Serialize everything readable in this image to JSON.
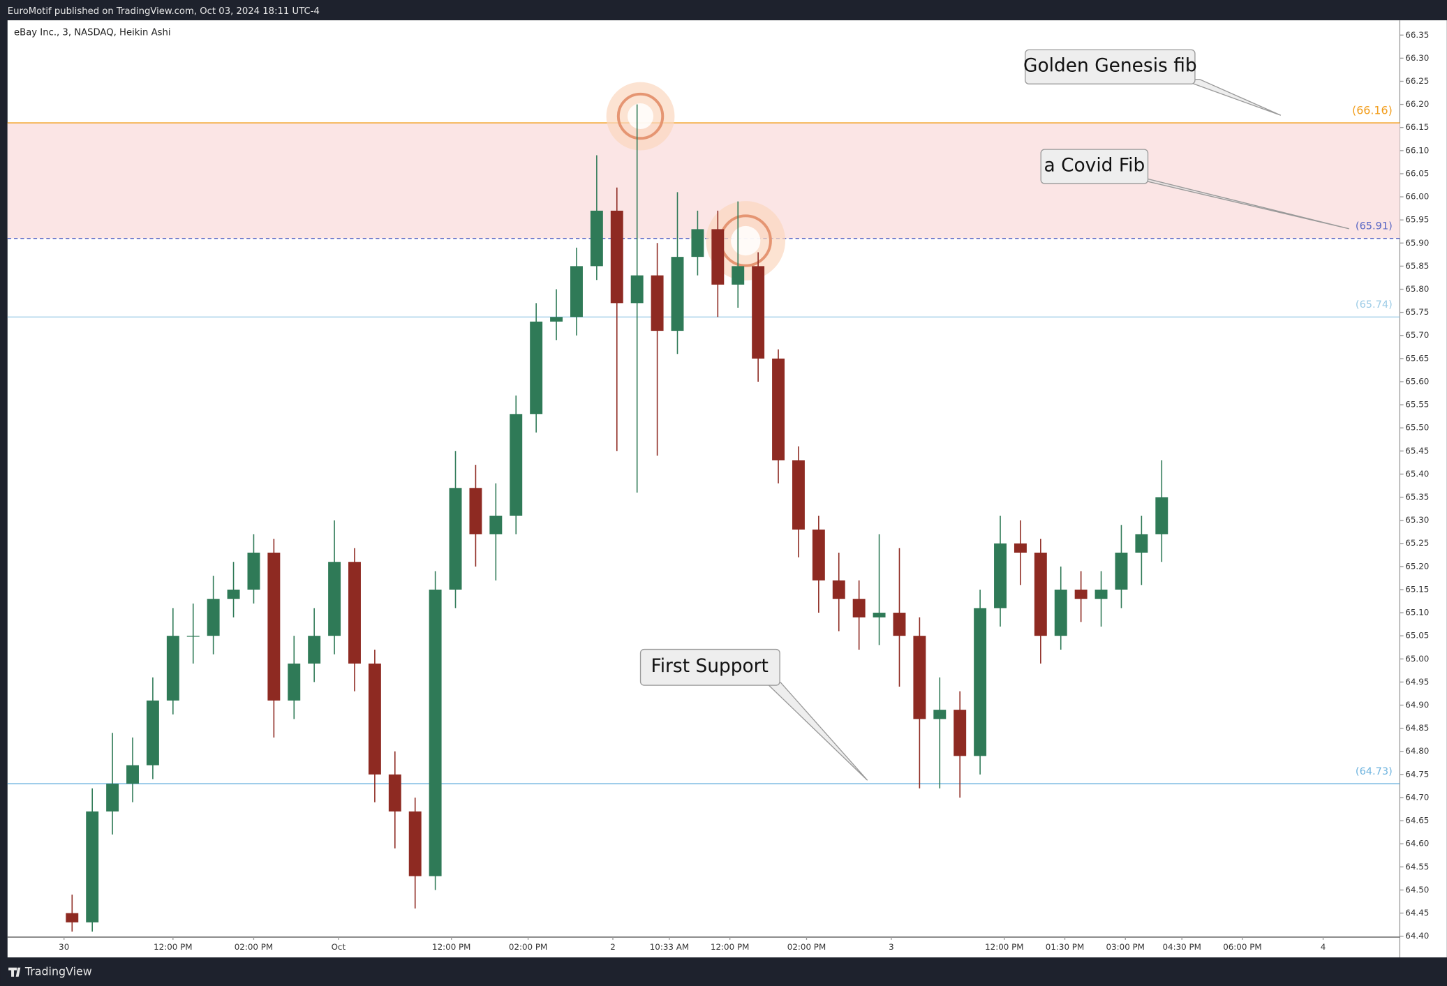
{
  "header": "EuroMotif published on TradingView.com, Oct 03, 2024 18:11 UTC-4",
  "footer": "TradingView",
  "chart_data": {
    "type": "candlestick",
    "title": "eBay Inc., 3, NASDAQ, Heikin Ashi",
    "up_color": "#2f7a57",
    "down_color": "#8e2a22",
    "x": [
      16,
      21,
      26,
      31,
      36,
      41,
      46,
      51,
      56,
      61,
      66,
      71,
      76,
      81,
      86,
      91,
      96,
      101,
      106,
      111,
      116,
      121,
      126,
      131,
      136,
      141,
      146,
      151,
      156,
      161,
      166,
      171,
      176,
      181,
      186,
      191,
      196,
      201,
      206,
      211,
      216,
      221,
      226,
      231,
      236,
      241,
      246,
      251,
      256,
      261,
      266,
      271,
      276,
      281,
      286
    ],
    "open": [
      64.45,
      64.43,
      64.67,
      64.73,
      64.77,
      64.91,
      65.05,
      65.05,
      65.13,
      65.15,
      65.23,
      64.91,
      64.99,
      65.05,
      65.21,
      64.99,
      64.75,
      64.67,
      64.53,
      65.15,
      65.37,
      65.27,
      65.31,
      65.53,
      65.73,
      65.74,
      65.85,
      65.97,
      65.77,
      65.83,
      65.71,
      65.87,
      65.93,
      65.81,
      65.85,
      65.65,
      65.43,
      65.28,
      65.17,
      65.13,
      65.09,
      65.1,
      65.05,
      64.87,
      64.89,
      64.79,
      65.11,
      65.25,
      65.23,
      65.05,
      65.15,
      65.13,
      65.15,
      65.23,
      65.27
    ],
    "high": [
      64.49,
      64.72,
      64.84,
      64.83,
      64.96,
      65.11,
      65.12,
      65.18,
      65.21,
      65.27,
      65.26,
      65.05,
      65.11,
      65.3,
      65.24,
      65.02,
      64.8,
      64.7,
      65.19,
      65.45,
      65.42,
      65.38,
      65.57,
      65.77,
      65.8,
      65.89,
      66.09,
      66.02,
      66.2,
      65.9,
      66.01,
      65.97,
      65.97,
      65.99,
      65.88,
      65.67,
      65.46,
      65.31,
      65.23,
      65.17,
      65.27,
      65.24,
      65.09,
      64.96,
      64.93,
      65.15,
      65.31,
      65.3,
      65.26,
      65.2,
      65.19,
      65.19,
      65.29,
      65.31,
      65.43
    ],
    "low": [
      64.41,
      64.41,
      64.62,
      64.69,
      64.74,
      64.88,
      64.99,
      65.01,
      65.09,
      65.12,
      64.83,
      64.87,
      64.95,
      65.01,
      64.93,
      64.69,
      64.59,
      64.46,
      64.5,
      65.11,
      65.2,
      65.17,
      65.27,
      65.49,
      65.69,
      65.7,
      65.82,
      65.45,
      65.36,
      65.44,
      65.66,
      65.83,
      65.74,
      65.76,
      65.6,
      65.38,
      65.22,
      65.1,
      65.06,
      65.02,
      65.03,
      64.94,
      64.72,
      64.72,
      64.7,
      64.75,
      65.07,
      65.16,
      64.99,
      65.02,
      65.08,
      65.07,
      65.11,
      65.16,
      65.21
    ],
    "close": [
      64.43,
      64.67,
      64.73,
      64.77,
      64.91,
      65.05,
      65.05,
      65.13,
      65.15,
      65.23,
      64.91,
      64.99,
      65.05,
      65.21,
      64.99,
      64.75,
      64.67,
      64.53,
      65.15,
      65.37,
      65.27,
      65.31,
      65.53,
      65.73,
      65.74,
      65.85,
      65.97,
      65.77,
      65.83,
      65.71,
      65.87,
      65.93,
      65.81,
      65.85,
      65.65,
      65.43,
      65.28,
      65.17,
      65.13,
      65.09,
      65.1,
      65.05,
      64.87,
      64.89,
      64.79,
      65.11,
      65.25,
      65.23,
      65.05,
      65.15,
      65.13,
      65.15,
      65.23,
      65.27,
      65.35
    ],
    "xlim": [
      0,
      345
    ],
    "xticks": [
      {
        "value": 14,
        "label": "30"
      },
      {
        "value": 41,
        "label": "12:00 PM"
      },
      {
        "value": 61,
        "label": "02:00 PM"
      },
      {
        "value": 82,
        "label": "Oct"
      },
      {
        "value": 110,
        "label": "12:00 PM"
      },
      {
        "value": 129,
        "label": "02:00 PM"
      },
      {
        "value": 150,
        "label": "2"
      },
      {
        "value": 164,
        "label": "10:33 AM"
      },
      {
        "value": 179,
        "label": "12:00 PM"
      },
      {
        "value": 198,
        "label": "02:00 PM"
      },
      {
        "value": 219,
        "label": "3"
      },
      {
        "value": 247,
        "label": "12:00 PM"
      },
      {
        "value": 262,
        "label": "01:30 PM"
      },
      {
        "value": 277,
        "label": "03:00 PM"
      },
      {
        "value": 291,
        "label": "04:30 PM"
      },
      {
        "value": 306,
        "label": "06:00 PM"
      },
      {
        "value": 326,
        "label": "4"
      }
    ],
    "ylim": [
      64.398,
      66.382
    ],
    "yticks": [
      66.35,
      {
        "value": 66.3,
        "label": "66.30"
      },
      66.25,
      {
        "value": 66.2,
        "label": "66.20"
      },
      66.15,
      {
        "value": 66.1,
        "label": "66.10"
      },
      66.05,
      {
        "value": 66,
        "label": "66.00"
      },
      65.95,
      {
        "value": 65.9,
        "label": "65.90"
      },
      65.85,
      {
        "value": 65.8,
        "label": "65.80"
      },
      65.75,
      {
        "value": 65.7,
        "label": "65.70"
      },
      65.65,
      {
        "value": 65.6,
        "label": "65.60"
      },
      65.55,
      {
        "value": 65.5,
        "label": "65.50"
      },
      65.45,
      {
        "value": 65.4,
        "label": "65.40"
      },
      65.35,
      {
        "value": 65.3,
        "label": "65.30"
      },
      65.25,
      {
        "value": 65.2,
        "label": "65.20"
      },
      65.15,
      {
        "value": 65.1,
        "label": "65.10"
      },
      65.05,
      {
        "value": 65,
        "label": "65.00"
      },
      64.95,
      {
        "value": 64.9,
        "label": "64.90"
      },
      64.85,
      {
        "value": 64.8,
        "label": "64.80"
      },
      64.75,
      {
        "value": 64.7,
        "label": "64.70"
      },
      64.65,
      {
        "value": 64.6,
        "label": "64.60"
      },
      64.55,
      {
        "value": 64.5,
        "label": "64.50"
      },
      64.45,
      {
        "value": 64.4,
        "label": "64.40"
      }
    ],
    "levels": [
      {
        "value": 66.16,
        "label": "(66.16)",
        "color": "#f29d1b",
        "dash": false
      },
      {
        "value": 65.91,
        "label": "(65.91)",
        "color": "#5866c4",
        "dash": true
      },
      {
        "value": 65.74,
        "label": "(65.74)",
        "color": "#9ccbe6",
        "dash": false
      },
      {
        "value": 64.73,
        "label": "(64.73)",
        "color": "#6fb4df",
        "dash": false
      }
    ],
    "zone_color": "#fbe5e5",
    "annotations": [
      "Golden Genesis fib",
      "a Covid Fib",
      "First Support"
    ]
  }
}
